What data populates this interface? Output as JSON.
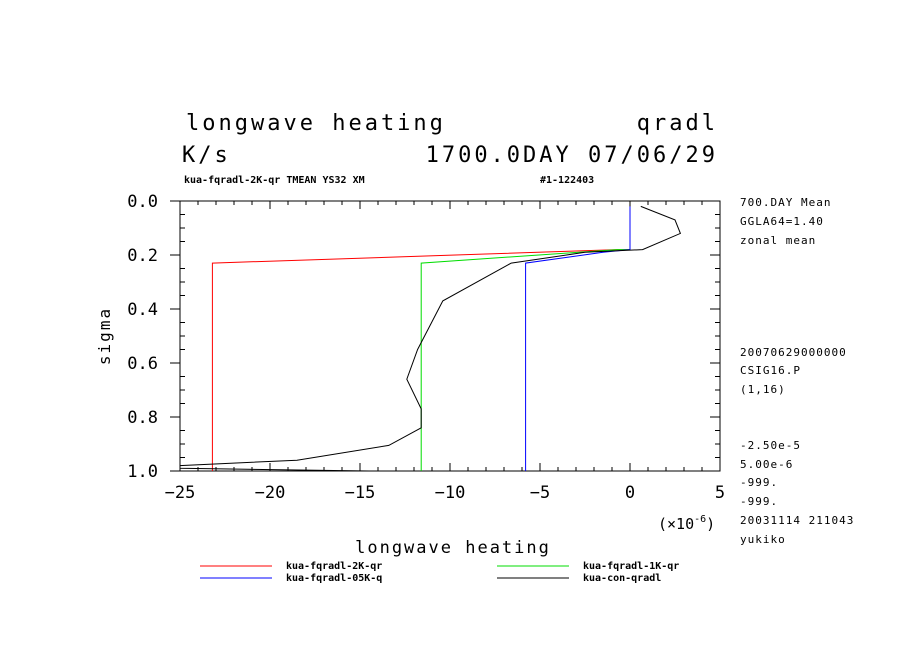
{
  "header": {
    "title": "longwave heating",
    "variable": "qradl",
    "units": "K/s",
    "day": "1700.0DAY 07/06/29",
    "run": "kua-fqradl-2K-qr TMEAN YS32 XM",
    "id": "#1-122403"
  },
  "side_info": {
    "top": [
      "700.DAY Mean",
      "GGLA64=1.40",
      "zonal mean"
    ],
    "middle": [
      "20070629000000",
      "CSIG16.P",
      "(1,16)"
    ],
    "bottom": [
      "-2.50e-5",
      "5.00e-6",
      "-999.",
      "-999.",
      "20031114 211043",
      "yukiko"
    ]
  },
  "chart_data": {
    "type": "line",
    "xlabel": "longwave heating",
    "ylabel": "sigma",
    "x_scale_label": "(×10",
    "x_scale_exp": "-6",
    "x_scale_close": ")",
    "xlim": [
      -25,
      5
    ],
    "ylim": [
      1.0,
      0.0
    ],
    "x_ticks": [
      -25,
      -20,
      -15,
      -10,
      -5,
      0,
      5
    ],
    "x_tick_labels": [
      "−25",
      "−20",
      "−15",
      "−10",
      "−5",
      "0",
      "5"
    ],
    "y_ticks": [
      0.0,
      0.2,
      0.4,
      0.6,
      0.8,
      1.0
    ],
    "y_tick_labels": [
      "0.0",
      "0.2",
      "0.4",
      "0.6",
      "0.8",
      "1.0"
    ],
    "grid": false,
    "legend_placement": "bottom",
    "series": [
      {
        "name": "kua-fqradl-2K-qr",
        "color": "#ff0000",
        "x": [
          -23.2,
          -23.2,
          -0.7,
          0.0
        ],
        "y": [
          1.0,
          0.23,
          0.18,
          0.18
        ]
      },
      {
        "name": "kua-fqradl-1K-qr",
        "color": "#00dd00",
        "x": [
          -11.6,
          -11.6,
          -0.7,
          0.0
        ],
        "y": [
          1.0,
          0.23,
          0.18,
          0.18
        ]
      },
      {
        "name": "kua-fqradl-05K-q",
        "color": "#0000ff",
        "x": [
          -5.8,
          -5.8,
          -1.5,
          0.0,
          0.0
        ],
        "y": [
          1.0,
          0.23,
          0.19,
          0.18,
          0.02
        ]
      },
      {
        "name": "kua-con-qradl",
        "color": "#000000",
        "x": [
          -14.5,
          -25.0,
          -25.0,
          -18.5,
          -13.4,
          -11.6,
          -11.6,
          -12.4,
          -11.8,
          -10.4,
          -6.6,
          -2.5,
          0.7,
          2.8,
          2.5,
          0.6
        ],
        "y": [
          1.0,
          0.99,
          0.98,
          0.96,
          0.905,
          0.84,
          0.77,
          0.66,
          0.55,
          0.37,
          0.23,
          0.19,
          0.18,
          0.12,
          0.07,
          0.02
        ]
      }
    ]
  }
}
